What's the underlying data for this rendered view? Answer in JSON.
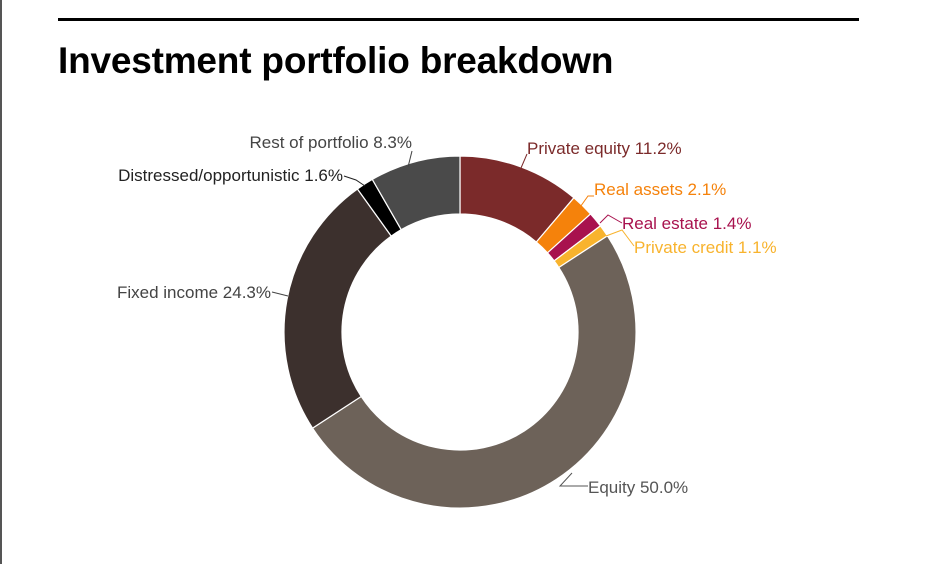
{
  "title": "Investment portfolio breakdown",
  "chart_data": {
    "type": "pie",
    "variant": "donut",
    "slices": [
      {
        "label": "Private equity",
        "value": 11.2,
        "display": "Private equity 11.2%",
        "color": "#7b2a2a",
        "label_color": "#7b2a2a"
      },
      {
        "label": "Real assets",
        "value": 2.1,
        "display": "Real assets 2.1%",
        "color": "#f5820b",
        "label_color": "#f5820b"
      },
      {
        "label": "Real estate",
        "value": 1.4,
        "display": "Real estate 1.4%",
        "color": "#a8124e",
        "label_color": "#a8124e"
      },
      {
        "label": "Private credit",
        "value": 1.1,
        "display": "Private credit 1.1%",
        "color": "#f8b32d",
        "label_color": "#f8b32d"
      },
      {
        "label": "Equity",
        "value": 50.0,
        "display": "Equity 50.0%",
        "color": "#6d6259",
        "label_color": "#555555"
      },
      {
        "label": "Fixed income",
        "value": 24.3,
        "display": "Fixed income 24.3%",
        "color": "#3c302d",
        "label_color": "#444444"
      },
      {
        "label": "Distressed/opportunistic",
        "value": 1.6,
        "display": "Distressed/opportunistic 1.6%",
        "color": "#000000",
        "label_color": "#222222"
      },
      {
        "label": "Rest of portfolio",
        "value": 8.3,
        "display": "Rest of portfolio 8.3%",
        "color": "#4a4a4a",
        "label_color": "#444444"
      }
    ],
    "start_angle_deg": 0,
    "direction": "clockwise",
    "legend": "none"
  }
}
